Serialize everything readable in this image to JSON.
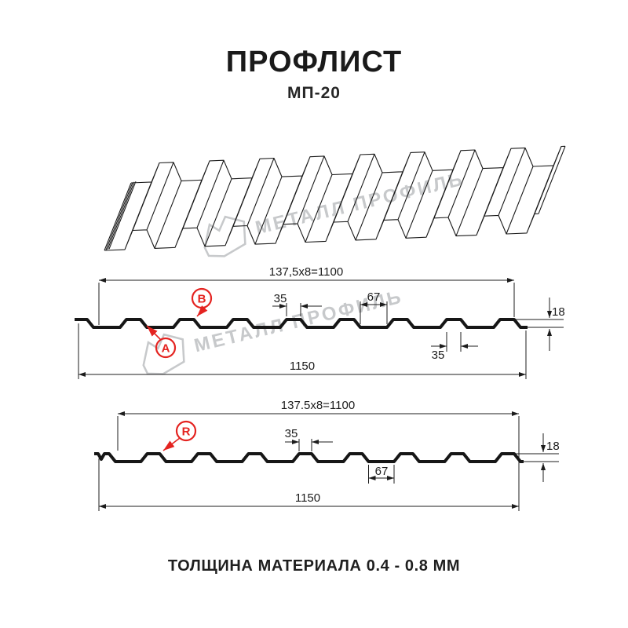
{
  "header": {
    "title": "ПРОФЛИСТ",
    "subtitle": "МП-20"
  },
  "watermark": {
    "text": "МЕТАЛЛ ПРОФИЛЬ"
  },
  "footer": {
    "text": "ТОЛЩИНА МАТЕРИАЛА 0.4 - 0.8 ММ"
  },
  "colors": {
    "brand_red": "#e42320",
    "line_black": "#161616",
    "dim_gray": "#1c1c1c",
    "watermark_gray": "#c7c9cb"
  },
  "profile_top": {
    "span": "137,5x8=1100",
    "total_width": "1150",
    "crest_top_width": "35",
    "crest_gap": "67",
    "height": "18",
    "bottom_flute_width": "35",
    "marker_a": "A",
    "marker_b": "B"
  },
  "profile_bottom": {
    "span": "137.5x8=1100",
    "total_width": "1150",
    "crest_top_width": "35",
    "valley_width": "67",
    "height": "18",
    "marker_r": "R"
  }
}
